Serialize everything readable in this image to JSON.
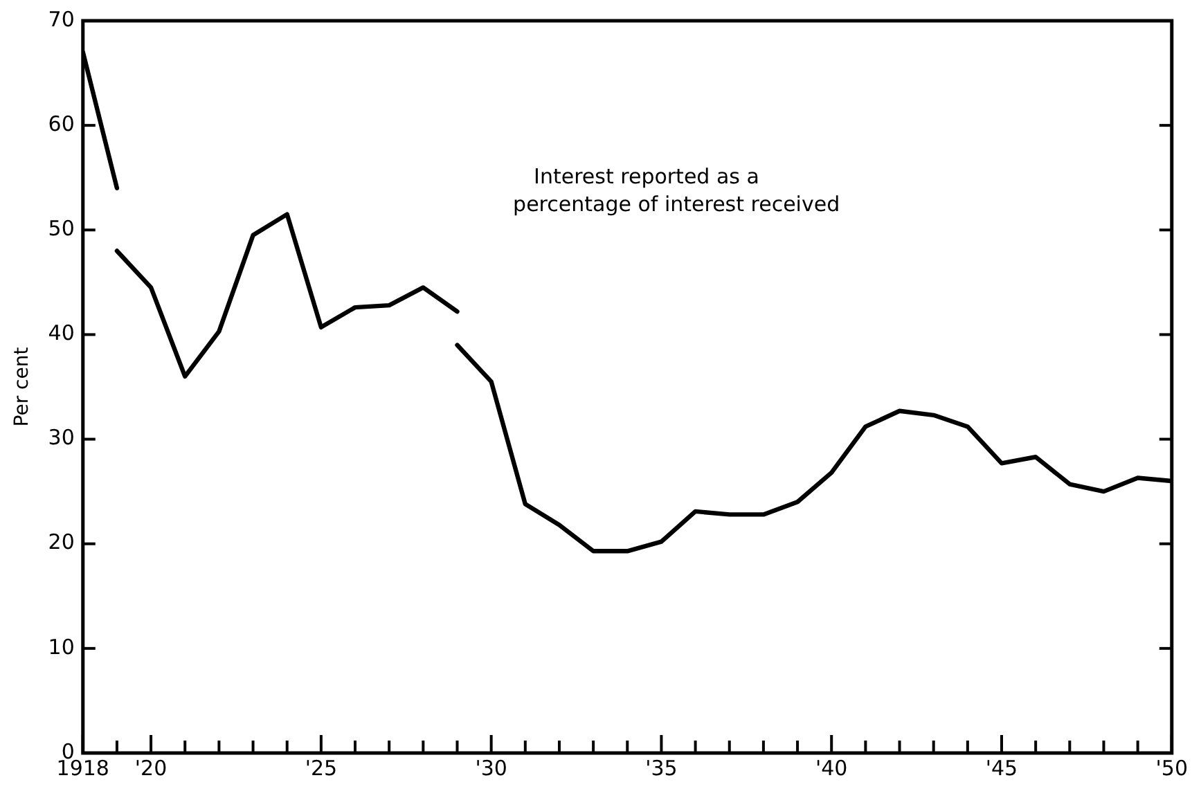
{
  "chart_data": {
    "type": "line",
    "ylabel": "Per cent",
    "annotations": [
      "Interest reported as a\npercentage of interest received"
    ],
    "xlim": [
      1918,
      1950
    ],
    "ylim": [
      0,
      70
    ],
    "yticks": [
      0,
      10,
      20,
      30,
      40,
      50,
      60,
      70
    ],
    "xticks": [
      {
        "value": 1918,
        "label": "1918"
      },
      {
        "value": 1919,
        "label": null
      },
      {
        "value": 1920,
        "label": "'20"
      },
      {
        "value": 1921,
        "label": null
      },
      {
        "value": 1922,
        "label": null
      },
      {
        "value": 1923,
        "label": null
      },
      {
        "value": 1924,
        "label": null
      },
      {
        "value": 1925,
        "label": "'25"
      },
      {
        "value": 1926,
        "label": null
      },
      {
        "value": 1927,
        "label": null
      },
      {
        "value": 1928,
        "label": null
      },
      {
        "value": 1929,
        "label": null
      },
      {
        "value": 1930,
        "label": "'30"
      },
      {
        "value": 1931,
        "label": null
      },
      {
        "value": 1932,
        "label": null
      },
      {
        "value": 1933,
        "label": null
      },
      {
        "value": 1934,
        "label": null
      },
      {
        "value": 1935,
        "label": "'35"
      },
      {
        "value": 1936,
        "label": null
      },
      {
        "value": 1937,
        "label": null
      },
      {
        "value": 1938,
        "label": null
      },
      {
        "value": 1939,
        "label": null
      },
      {
        "value": 1940,
        "label": "'40"
      },
      {
        "value": 1941,
        "label": null
      },
      {
        "value": 1942,
        "label": null
      },
      {
        "value": 1943,
        "label": null
      },
      {
        "value": 1944,
        "label": null
      },
      {
        "value": 1945,
        "label": "'45"
      },
      {
        "value": 1946,
        "label": null
      },
      {
        "value": 1947,
        "label": null
      },
      {
        "value": 1948,
        "label": null
      },
      {
        "value": 1949,
        "label": null
      },
      {
        "value": 1950,
        "label": "'50"
      }
    ],
    "grid": false,
    "legend": false,
    "marker": "none",
    "line_style": "solid",
    "series": [
      {
        "color": "#000000",
        "x": [
          1918,
          1919
        ],
        "values": [
          67,
          54
        ]
      },
      {
        "color": "#000000",
        "x": [
          1919,
          1920,
          1921,
          1922,
          1923,
          1924,
          1925,
          1926,
          1927,
          1928,
          1929
        ],
        "values": [
          48,
          44.5,
          36,
          40.3,
          49.5,
          51.5,
          40.7,
          42.6,
          42.8,
          44.5,
          42.2
        ]
      },
      {
        "color": "#000000",
        "x": [
          1929,
          1930,
          1931,
          1932,
          1933,
          1934,
          1935,
          1936,
          1937,
          1938,
          1939,
          1940,
          1941,
          1942,
          1943,
          1944,
          1945,
          1946,
          1947,
          1948,
          1949,
          1950
        ],
        "values": [
          39,
          35.5,
          23.8,
          21.8,
          19.3,
          19.3,
          20.2,
          23.1,
          22.8,
          22.8,
          24,
          26.8,
          31.2,
          32.7,
          32.3,
          31.2,
          27.7,
          28.3,
          25.7,
          25,
          26.3,
          26
        ]
      }
    ]
  }
}
